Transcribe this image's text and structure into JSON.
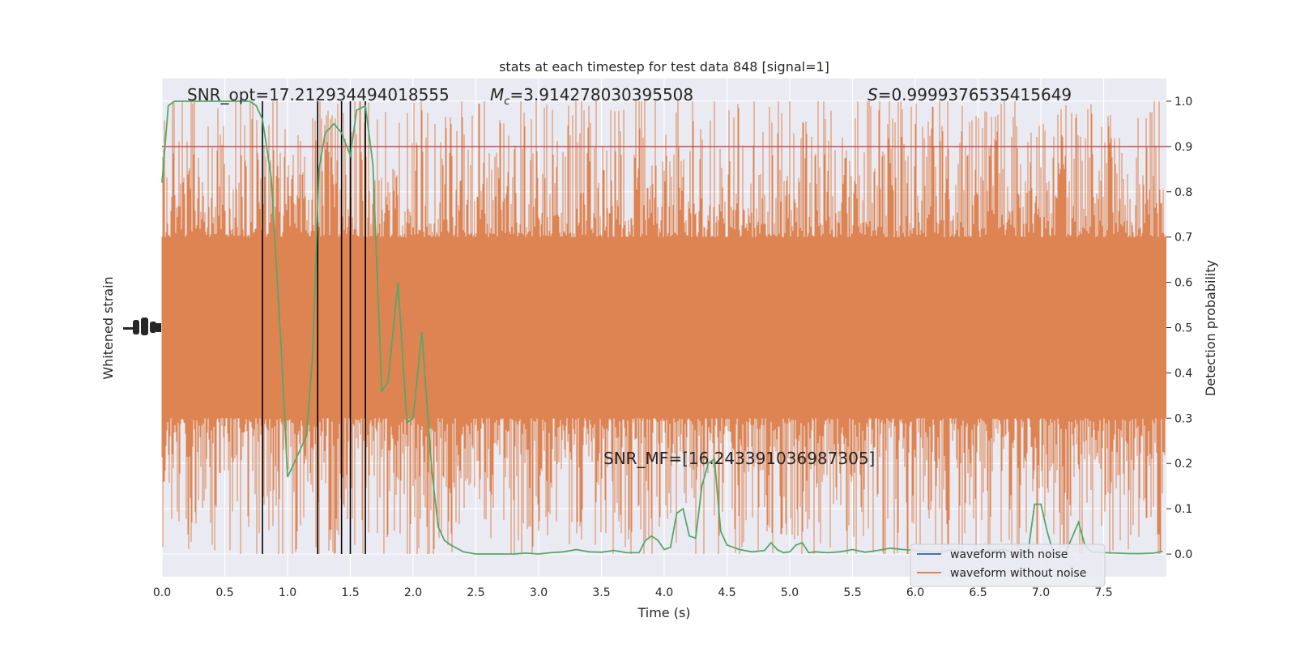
{
  "chart_data": {
    "type": "line",
    "title": "stats at each timestep for test data 848 [signal=1]",
    "xlabel": "Time (s)",
    "ylabel_left": "Whitened strain",
    "ylabel_right": "Detection probability",
    "xlim": [
      0,
      8
    ],
    "ylim_right": [
      -0.05,
      1.05
    ],
    "x_ticks": [
      "0.0",
      "0.5",
      "1.0",
      "1.5",
      "2.0",
      "2.5",
      "3.0",
      "3.5",
      "4.0",
      "4.5",
      "5.0",
      "5.5",
      "6.0",
      "6.5",
      "7.0",
      "7.5"
    ],
    "y_ticks_right": [
      "0.0",
      "0.1",
      "0.2",
      "0.3",
      "0.4",
      "0.5",
      "0.6",
      "0.7",
      "0.8",
      "0.9",
      "1.0"
    ],
    "grid": true,
    "legend_position": "lower-right",
    "annotations": {
      "snr_opt": "SNR_opt=17.212934494018555",
      "mc_symbol": "M",
      "mc_sub": "c",
      "mc_value": "=3.914278030395508",
      "s_symbol": "S",
      "s_value": "=0.9999376535415649",
      "snr_mf": "SNR_MF=[16.243391036987305]"
    },
    "threshold": 0.9,
    "vertical_lines": [
      0.8,
      1.24,
      1.43,
      1.5,
      1.62
    ],
    "series": [
      {
        "name": "waveform with noise",
        "color": "#4c72b0"
      },
      {
        "name": "waveform without noise",
        "color": "#dd8452"
      }
    ],
    "detection_probability": {
      "color": "#55a868",
      "x": [
        0.0,
        0.05,
        0.1,
        0.2,
        0.3,
        0.4,
        0.5,
        0.6,
        0.7,
        0.75,
        0.8,
        0.87,
        0.95,
        1.0,
        1.05,
        1.1,
        1.15,
        1.2,
        1.25,
        1.3,
        1.37,
        1.43,
        1.5,
        1.55,
        1.62,
        1.68,
        1.75,
        1.8,
        1.88,
        1.95,
        2.0,
        2.07,
        2.15,
        2.2,
        2.25,
        2.3,
        2.4,
        2.5,
        2.6,
        2.7,
        2.8,
        2.9,
        3.0,
        3.1,
        3.2,
        3.3,
        3.4,
        3.5,
        3.6,
        3.7,
        3.8,
        3.85,
        3.9,
        3.95,
        4.0,
        4.05,
        4.1,
        4.15,
        4.2,
        4.25,
        4.3,
        4.35,
        4.4,
        4.45,
        4.5,
        4.55,
        4.6,
        4.7,
        4.8,
        4.85,
        4.9,
        4.95,
        5.0,
        5.05,
        5.1,
        5.15,
        5.2,
        5.3,
        5.4,
        5.5,
        5.6,
        5.7,
        5.8,
        5.9,
        6.0,
        6.1,
        6.2,
        6.3,
        6.4,
        6.5,
        6.6,
        6.7,
        6.8,
        6.9,
        6.95,
        7.0,
        7.05,
        7.1,
        7.2,
        7.3,
        7.35,
        7.4,
        7.5,
        7.6,
        7.7,
        7.8,
        7.9,
        7.97
      ],
      "y": [
        0.82,
        0.99,
        1.0,
        1.0,
        1.0,
        1.0,
        1.0,
        1.0,
        1.0,
        0.99,
        0.96,
        0.83,
        0.45,
        0.17,
        0.2,
        0.23,
        0.26,
        0.44,
        0.85,
        0.93,
        0.95,
        0.93,
        0.88,
        0.98,
        0.99,
        0.86,
        0.36,
        0.38,
        0.6,
        0.29,
        0.3,
        0.49,
        0.18,
        0.06,
        0.03,
        0.02,
        0.005,
        0.0,
        0.0,
        0.0,
        0.0,
        0.002,
        0.0,
        0.003,
        0.005,
        0.01,
        0.005,
        0.004,
        0.008,
        0.003,
        0.003,
        0.03,
        0.04,
        0.03,
        0.01,
        0.015,
        0.09,
        0.1,
        0.04,
        0.035,
        0.15,
        0.2,
        0.21,
        0.05,
        0.02,
        0.015,
        0.01,
        0.005,
        0.008,
        0.025,
        0.01,
        0.003,
        0.005,
        0.02,
        0.025,
        0.003,
        0.005,
        0.003,
        0.005,
        0.01,
        0.004,
        0.008,
        0.013,
        0.01,
        0.008,
        0.005,
        0.004,
        0.01,
        0.003,
        0.006,
        0.008,
        0.01,
        0.004,
        0.008,
        0.11,
        0.11,
        0.05,
        0.002,
        0.005,
        0.07,
        0.02,
        0.005,
        0.003,
        0.002,
        0.001,
        0.001,
        0.002,
        0.006
      ]
    },
    "strain_envelope": {
      "inner_band": [
        0.3,
        0.7
      ],
      "spike_range": [
        0.0,
        1.0
      ]
    }
  }
}
